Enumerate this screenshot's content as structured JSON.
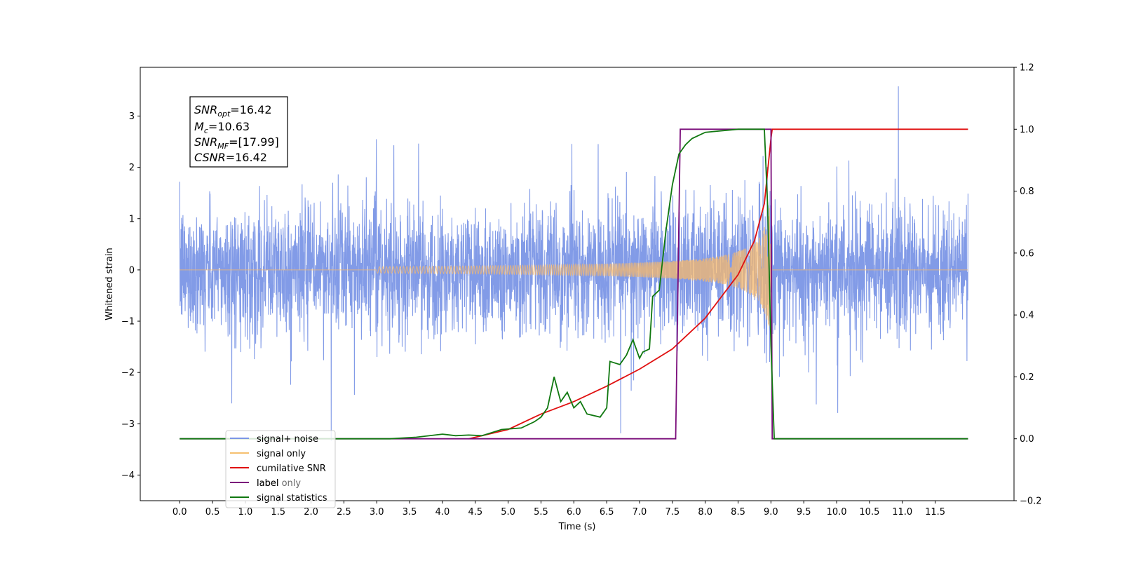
{
  "chart_data": {
    "type": "line",
    "xlabel": "Time (s)",
    "ylabel": "Whitened strain",
    "xlim": [
      -0.6,
      12.7
    ],
    "ylim": [
      -4.5,
      3.95
    ],
    "y2lim": [
      -0.2,
      1.2
    ],
    "x_ticks": [
      "0.0",
      "0.5",
      "1.0",
      "1.5",
      "2.0",
      "2.5",
      "3.0",
      "3.5",
      "4.0",
      "4.5",
      "5.0",
      "5.5",
      "6.0",
      "6.5",
      "7.0",
      "7.5",
      "8.0",
      "8.5",
      "9.0",
      "9.5",
      "10.0",
      "10.5",
      "11.0",
      "11.5"
    ],
    "y_ticks": [
      "3",
      "2",
      "1",
      "0",
      "−1",
      "−2",
      "−3",
      "−4"
    ],
    "y2_ticks": [
      "1.2",
      "1.0",
      "0.8",
      "0.6",
      "0.4",
      "0.2",
      "0.0",
      "−0.2"
    ],
    "annotation": {
      "lines": [
        {
          "main": "SNR",
          "sub": "opt",
          "rest": "=16.42"
        },
        {
          "main": "M",
          "sub": "c",
          "rest": "=10.63"
        },
        {
          "main": "SNR",
          "sub": "MF",
          "rest": "=[17.99]"
        },
        {
          "main": "CSNR",
          "sub": "",
          "rest": "=16.42"
        }
      ]
    },
    "legend": {
      "placement": "lower-left",
      "entries": [
        "signal+ noise",
        "signal only",
        "cumilative SNR",
        "label",
        "signal statistics"
      ],
      "obscured_entry": "label only"
    },
    "series": [
      {
        "name": "signal+ noise",
        "axis": "left",
        "color": "#7b96e6",
        "description_stats": {
          "x_range": [
            0.0,
            12.0
          ],
          "typical_range": [
            -1.7,
            1.6
          ],
          "max": 3.58,
          "min": -4.1
        }
      },
      {
        "name": "signal only",
        "axis": "left",
        "color": "#f5b86c",
        "description_stats": {
          "x_range": [
            0.0,
            12.0
          ],
          "chirp_start": 4.0,
          "merger": 9.0,
          "peak_amplitude": 1.4
        }
      },
      {
        "name": "cumilative SNR",
        "axis": "right",
        "color": "#e01010",
        "points": [
          [
            4.4,
            0.0
          ],
          [
            5.0,
            0.03
          ],
          [
            5.5,
            0.08
          ],
          [
            6.0,
            0.12
          ],
          [
            6.5,
            0.17
          ],
          [
            7.0,
            0.225
          ],
          [
            7.5,
            0.29
          ],
          [
            8.0,
            0.39
          ],
          [
            8.5,
            0.53
          ],
          [
            8.75,
            0.64
          ],
          [
            8.9,
            0.76
          ],
          [
            9.0,
            0.97
          ],
          [
            9.02,
            1.0
          ],
          [
            12.0,
            1.0
          ]
        ]
      },
      {
        "name": "label",
        "axis": "right",
        "color": "#7b0e7b",
        "points": [
          [
            0.0,
            0.0
          ],
          [
            7.55,
            0.0
          ],
          [
            7.62,
            1.0
          ],
          [
            9.0,
            1.0
          ],
          [
            9.02,
            0.0
          ],
          [
            12.0,
            0.0
          ]
        ]
      },
      {
        "name": "signal statistics",
        "axis": "right",
        "color": "#107810",
        "points": [
          [
            0.0,
            0.0
          ],
          [
            3.2,
            0.0
          ],
          [
            3.6,
            0.005
          ],
          [
            4.0,
            0.015
          ],
          [
            4.2,
            0.01
          ],
          [
            4.4,
            0.012
          ],
          [
            4.6,
            0.01
          ],
          [
            4.9,
            0.03
          ],
          [
            5.2,
            0.035
          ],
          [
            5.4,
            0.055
          ],
          [
            5.5,
            0.07
          ],
          [
            5.6,
            0.1
          ],
          [
            5.7,
            0.2
          ],
          [
            5.8,
            0.12
          ],
          [
            5.9,
            0.15
          ],
          [
            6.0,
            0.1
          ],
          [
            6.1,
            0.12
          ],
          [
            6.2,
            0.08
          ],
          [
            6.4,
            0.07
          ],
          [
            6.5,
            0.1
          ],
          [
            6.55,
            0.25
          ],
          [
            6.7,
            0.24
          ],
          [
            6.8,
            0.27
          ],
          [
            6.9,
            0.32
          ],
          [
            7.0,
            0.26
          ],
          [
            7.05,
            0.28
          ],
          [
            7.15,
            0.29
          ],
          [
            7.2,
            0.46
          ],
          [
            7.3,
            0.48
          ],
          [
            7.4,
            0.67
          ],
          [
            7.5,
            0.82
          ],
          [
            7.6,
            0.92
          ],
          [
            7.7,
            0.95
          ],
          [
            7.8,
            0.97
          ],
          [
            8.0,
            0.99
          ],
          [
            8.5,
            1.0
          ],
          [
            8.9,
            1.0
          ],
          [
            8.95,
            0.75
          ],
          [
            9.0,
            0.3
          ],
          [
            9.05,
            0.0
          ],
          [
            12.0,
            0.0
          ]
        ]
      }
    ]
  }
}
